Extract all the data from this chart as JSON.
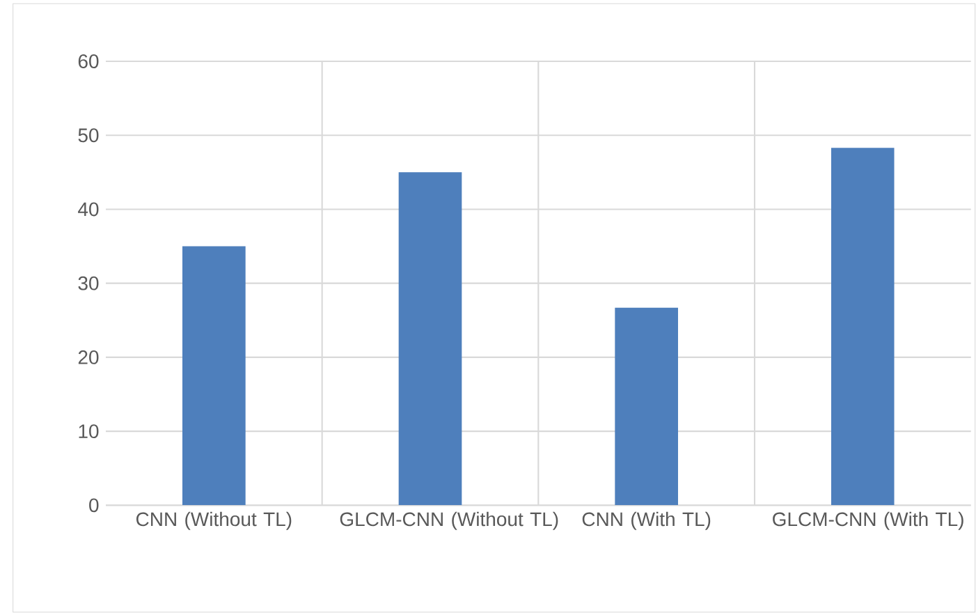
{
  "chart_data": {
    "type": "bar",
    "categories": [
      "CNN (Without TL)",
      "GLCM-CNN (Without TL)",
      "CNN (With TL)",
      "GLCM-CNN (With TL)"
    ],
    "values": [
      35,
      45,
      26.7,
      48.3
    ],
    "color": "#4e7fbc",
    "ylim": [
      0,
      60
    ],
    "yticks": [
      0,
      10,
      20,
      30,
      40,
      50,
      60
    ],
    "grid": true
  }
}
